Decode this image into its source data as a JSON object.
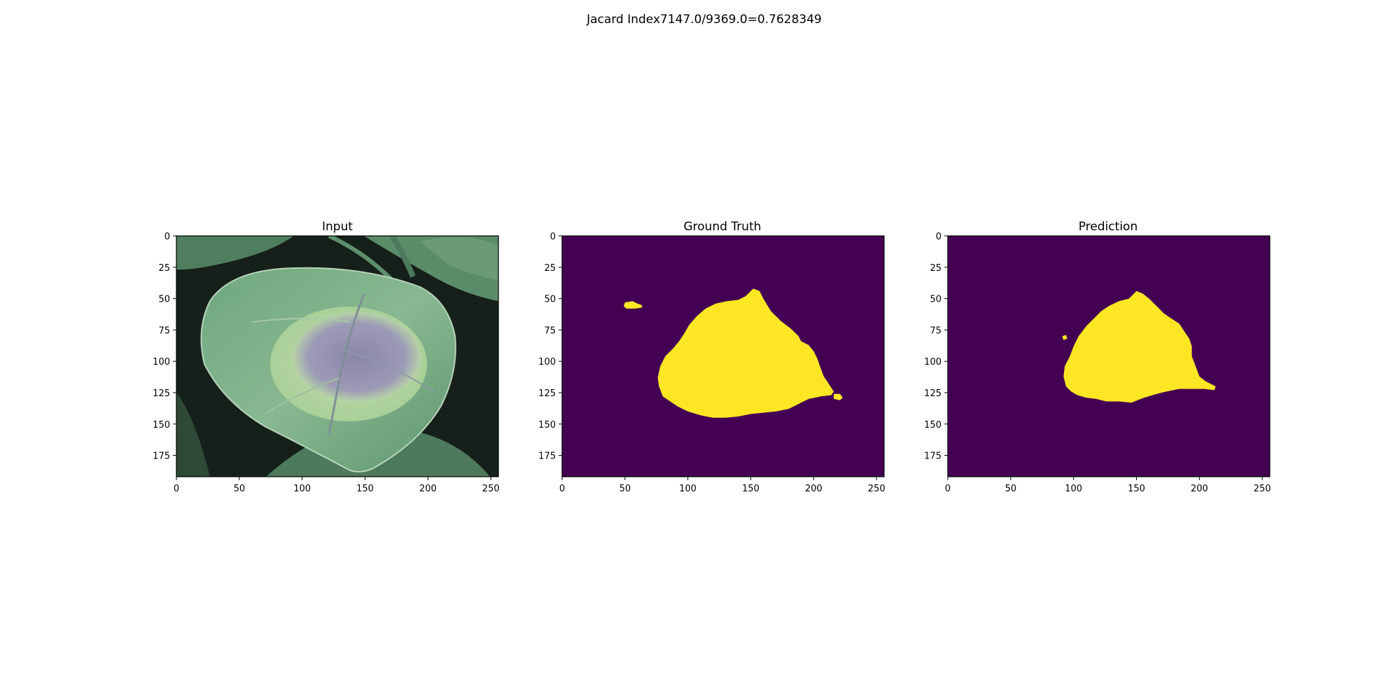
{
  "figure": {
    "suptitle": "Jacard Index7147.0/9369.0=0.7628349"
  },
  "colors": {
    "background_purple": "#440154",
    "foreground_yellow": "#fde725",
    "axes_frame": "#000000"
  },
  "chart_data": [
    {
      "type": "image",
      "title": "Input",
      "content": "leaf photograph",
      "image_width": 256,
      "image_height": 192,
      "xticks": [
        0,
        50,
        100,
        150,
        200,
        250
      ],
      "yticks": [
        0,
        25,
        50,
        75,
        100,
        125,
        150,
        175
      ],
      "xlim": [
        0,
        256
      ],
      "ylim": [
        192,
        0
      ]
    },
    {
      "type": "heatmap",
      "title": "Ground Truth",
      "image_width": 256,
      "image_height": 192,
      "xticks": [
        0,
        50,
        100,
        150,
        200,
        250
      ],
      "yticks": [
        0,
        25,
        50,
        75,
        100,
        125,
        150,
        175
      ],
      "xlim": [
        0,
        256
      ],
      "ylim": [
        192,
        0
      ],
      "regions": [
        {
          "label": "mask-blob-main",
          "points": [
            [
              152,
              42
            ],
            [
              157,
              44
            ],
            [
              160,
              50
            ],
            [
              166,
              60
            ],
            [
              174,
              68
            ],
            [
              182,
              74
            ],
            [
              188,
              80
            ],
            [
              190,
              84
            ],
            [
              196,
              87
            ],
            [
              200,
              92
            ],
            [
              203,
              98
            ],
            [
              205,
              104
            ],
            [
              208,
              112
            ],
            [
              212,
              118
            ],
            [
              216,
              124
            ],
            [
              214,
              127
            ],
            [
              206,
              128
            ],
            [
              196,
              130
            ],
            [
              188,
              134
            ],
            [
              180,
              138
            ],
            [
              170,
              140
            ],
            [
              160,
              141
            ],
            [
              150,
              142
            ],
            [
              140,
              144
            ],
            [
              130,
              145
            ],
            [
              120,
              145
            ],
            [
              110,
              143
            ],
            [
              100,
              140
            ],
            [
              92,
              136
            ],
            [
              86,
              132
            ],
            [
              80,
              128
            ],
            [
              77,
              120
            ],
            [
              76,
              113
            ],
            [
              78,
              104
            ],
            [
              82,
              96
            ],
            [
              88,
              90
            ],
            [
              93,
              84
            ],
            [
              97,
              78
            ],
            [
              101,
              71
            ],
            [
              107,
              64
            ],
            [
              114,
              58
            ],
            [
              122,
              54
            ],
            [
              131,
              52
            ],
            [
              140,
              51
            ],
            [
              146,
              48
            ]
          ]
        },
        {
          "label": "mask-blob-left",
          "points": [
            [
              50,
              53
            ],
            [
              56,
              52
            ],
            [
              60,
              54
            ],
            [
              63,
              55
            ],
            [
              64,
              57
            ],
            [
              58,
              58
            ],
            [
              51,
              58
            ],
            [
              49,
              56
            ]
          ]
        },
        {
          "label": "mask-blob-right",
          "points": [
            [
              216,
              126
            ],
            [
              221,
              126
            ],
            [
              223,
              129
            ],
            [
              221,
              131
            ],
            [
              216,
              130
            ]
          ]
        }
      ]
    },
    {
      "type": "heatmap",
      "title": "Prediction",
      "image_width": 256,
      "image_height": 192,
      "xticks": [
        0,
        50,
        100,
        150,
        200,
        250
      ],
      "yticks": [
        0,
        25,
        50,
        75,
        100,
        125,
        150,
        175
      ],
      "xlim": [
        0,
        256
      ],
      "ylim": [
        192,
        0
      ],
      "regions": [
        {
          "label": "mask-blob-main",
          "points": [
            [
              150,
              44
            ],
            [
              155,
              46
            ],
            [
              160,
              50
            ],
            [
              166,
              56
            ],
            [
              172,
              62
            ],
            [
              178,
              66
            ],
            [
              184,
              70
            ],
            [
              188,
              76
            ],
            [
              192,
              82
            ],
            [
              194,
              88
            ],
            [
              194,
              96
            ],
            [
              197,
              104
            ],
            [
              200,
              112
            ],
            [
              205,
              116
            ],
            [
              213,
              120
            ],
            [
              212,
              123
            ],
            [
              204,
              122
            ],
            [
              194,
              122
            ],
            [
              184,
              122
            ],
            [
              174,
              124
            ],
            [
              166,
              126
            ],
            [
              156,
              129
            ],
            [
              146,
              133
            ],
            [
              136,
              132
            ],
            [
              126,
              132
            ],
            [
              118,
              130
            ],
            [
              110,
              129
            ],
            [
              103,
              127
            ],
            [
              98,
              124
            ],
            [
              94,
              120
            ],
            [
              92,
              112
            ],
            [
              93,
              104
            ],
            [
              97,
              96
            ],
            [
              100,
              88
            ],
            [
              104,
              80
            ],
            [
              110,
              72
            ],
            [
              116,
              66
            ],
            [
              122,
              60
            ],
            [
              128,
              56
            ],
            [
              136,
              52
            ],
            [
              144,
              50
            ]
          ]
        },
        {
          "label": "mask-blob-speck",
          "points": [
            [
              91,
              80
            ],
            [
              94,
              79
            ],
            [
              95,
              82
            ],
            [
              92,
              83
            ]
          ]
        }
      ]
    }
  ]
}
